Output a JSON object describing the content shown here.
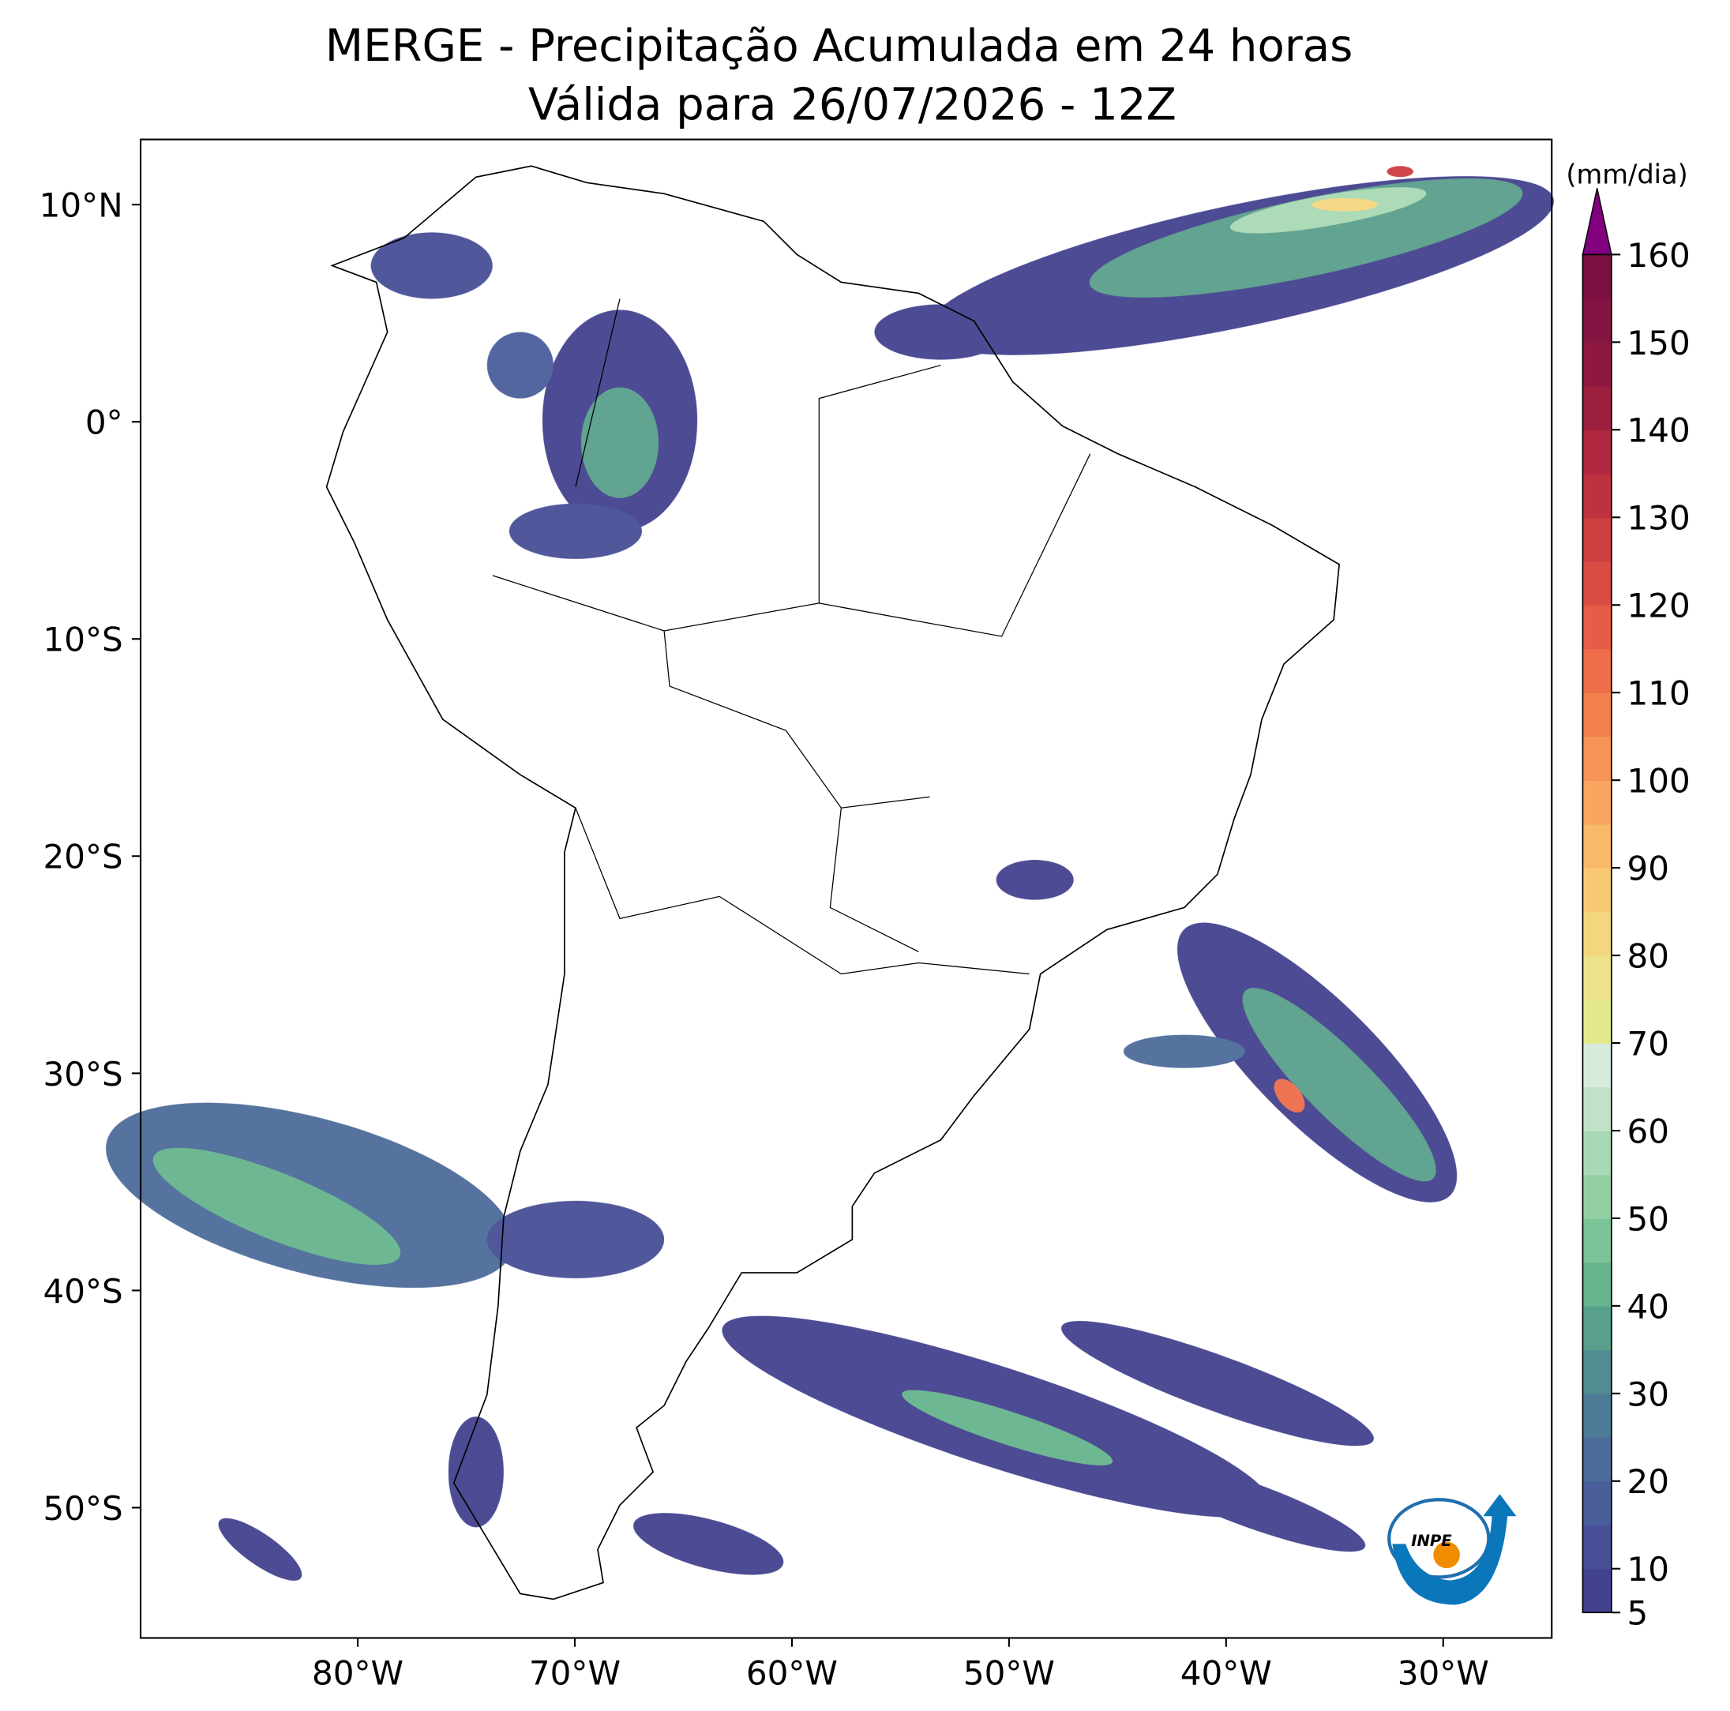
{
  "title": "MERGE - Precipitação Acumulada em 24 horas",
  "subtitle": "Válida para 26/07/2026 - 12Z",
  "map": {
    "xlim": [
      -90,
      -25
    ],
    "ylim": [
      -56,
      13
    ],
    "xticks": [
      {
        "value": -80,
        "label": "80°W"
      },
      {
        "value": -70,
        "label": "70°W"
      },
      {
        "value": -60,
        "label": "60°W"
      },
      {
        "value": -50,
        "label": "50°W"
      },
      {
        "value": -40,
        "label": "40°W"
      },
      {
        "value": -30,
        "label": "30°W"
      }
    ],
    "yticks": [
      {
        "value": 10,
        "label": "10°N"
      },
      {
        "value": 0,
        "label": "0°"
      },
      {
        "value": -10,
        "label": "10°S"
      },
      {
        "value": -20,
        "label": "20°S"
      },
      {
        "value": -30,
        "label": "30°S"
      },
      {
        "value": -40,
        "label": "40°S"
      },
      {
        "value": -50,
        "label": "50°S"
      }
    ]
  },
  "colorbar": {
    "label": "(mm/dia)",
    "ticks": [
      5,
      10,
      15,
      20,
      25,
      30,
      35,
      40,
      45,
      50,
      55,
      60,
      65,
      70,
      75,
      80,
      85,
      90,
      95,
      100,
      105,
      110,
      115,
      120,
      125,
      130,
      135,
      140,
      145,
      150,
      155,
      160
    ],
    "tick_labels_shown": [
      10,
      20,
      30,
      40,
      50,
      60,
      70,
      80,
      90,
      100,
      110,
      120,
      130,
      140,
      150,
      160
    ],
    "colors": [
      "#43428e",
      "#474f96",
      "#4a5e9a",
      "#4c6c99",
      "#4d7b95",
      "#518d90",
      "#59a08c",
      "#67b48e",
      "#7bc497",
      "#92d0a4",
      "#a9d9b4",
      "#c1e2c6",
      "#d7ebdc",
      "#e3ea8b",
      "#ede28a",
      "#f4d67f",
      "#f8c974",
      "#f9b96a",
      "#f8a660",
      "#f69457",
      "#f3814f",
      "#ee6e4a",
      "#e65c46",
      "#da4b43",
      "#cd3e41",
      "#be3240",
      "#ae283f",
      "#9d1f3f",
      "#8f1840",
      "#841441",
      "#7a1042"
    ],
    "extend_color": "#800080"
  },
  "logo_text": "INPE"
}
